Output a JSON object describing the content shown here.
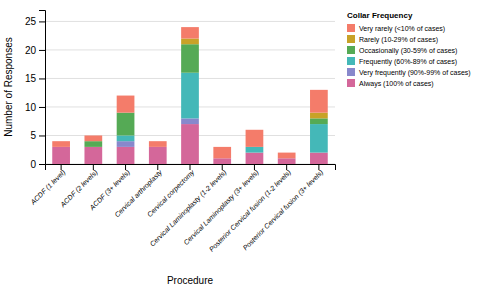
{
  "chart_data": {
    "type": "bar",
    "stacked": true,
    "xlabel": "Procedure",
    "ylabel": "Number of Responses",
    "legend_title": "Collar Frequency",
    "legend": "upper right",
    "grid": true,
    "categories": [
      "ACDF (1 level)",
      "ACDF (2 levels)",
      "ACDF (3+ levels)",
      "Cervical arthroplasty",
      "Cervical corpectomy",
      "Cervical Laminoplasty (1-2 levels)",
      "Cervical Laminoplasty (3+ levels)",
      "Posterior Cervical fusion (1-2 levels)",
      "Posterior Cervical fusion (3+ levels)"
    ],
    "series": [
      {
        "name": "Always (100% of cases)",
        "color": "#d4679a",
        "values": [
          3,
          3,
          3,
          3,
          7,
          1,
          2,
          1,
          2
        ]
      },
      {
        "name": "Very frequently (90%-99% of cases)",
        "color": "#8888cc",
        "values": [
          0,
          0,
          1,
          0,
          1,
          0,
          0,
          0,
          0
        ]
      },
      {
        "name": "Frequently (60%-89% of cases)",
        "color": "#44b8b8",
        "values": [
          0,
          0,
          1,
          0,
          8,
          0,
          1,
          0,
          5
        ]
      },
      {
        "name": "Occasionally (30-59% of cases)",
        "color": "#55aa55",
        "values": [
          0,
          1,
          4,
          0,
          5,
          0,
          0,
          0,
          1
        ]
      },
      {
        "name": "Rarely (10-29% of cases)",
        "color": "#c8a228",
        "values": [
          0,
          0,
          0,
          0,
          1,
          0,
          0,
          0,
          1
        ]
      },
      {
        "name": "Very rarely (<10% of cases)",
        "color": "#f47c6a",
        "values": [
          1,
          1,
          3,
          1,
          2,
          2,
          3,
          1,
          4
        ]
      }
    ],
    "ylim": [
      0,
      27
    ],
    "yticks": [
      0,
      5,
      10,
      15,
      20,
      25
    ]
  }
}
